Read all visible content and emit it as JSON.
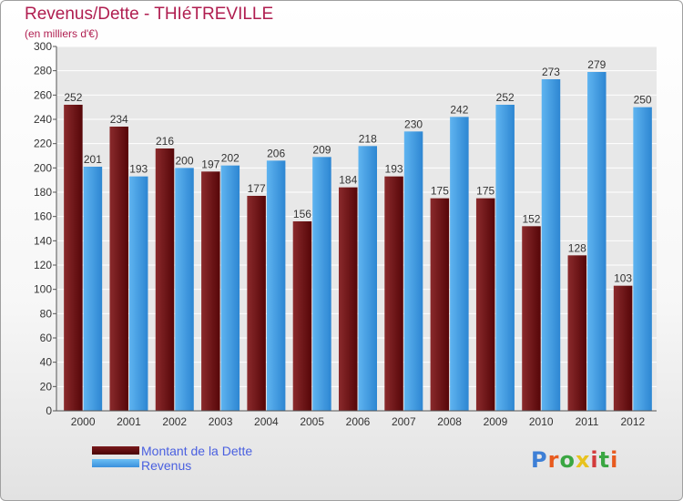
{
  "title": "Revenus/Dette - THIéTREVILLE",
  "subtitle": "(en milliers d'€)",
  "logo": {
    "text": "Proxiti",
    "colors": [
      "#3d7fd6",
      "#e85a1e",
      "#3aa642",
      "#e8c21e",
      "#d23b3b",
      "#3aa642",
      "#e85a1e"
    ]
  },
  "chart_data": {
    "type": "bar",
    "categories": [
      "2000",
      "2001",
      "2002",
      "2003",
      "2004",
      "2005",
      "2006",
      "2007",
      "2008",
      "2009",
      "2010",
      "2011",
      "2012"
    ],
    "series": [
      {
        "name": "Montant de la Dette",
        "color": "#6b0e10",
        "values": [
          252,
          234,
          216,
          197,
          177,
          156,
          184,
          193,
          175,
          175,
          152,
          128,
          103
        ]
      },
      {
        "name": "Revenus",
        "color": "#4aa3e8",
        "values": [
          201,
          193,
          200,
          202,
          206,
          209,
          218,
          230,
          242,
          252,
          273,
          279,
          250
        ]
      }
    ],
    "ylim": [
      0,
      300
    ],
    "yticks": [
      0,
      20,
      40,
      60,
      80,
      100,
      120,
      140,
      160,
      180,
      200,
      220,
      240,
      260,
      280,
      300
    ],
    "grid": true,
    "legend": "bottom-left"
  }
}
